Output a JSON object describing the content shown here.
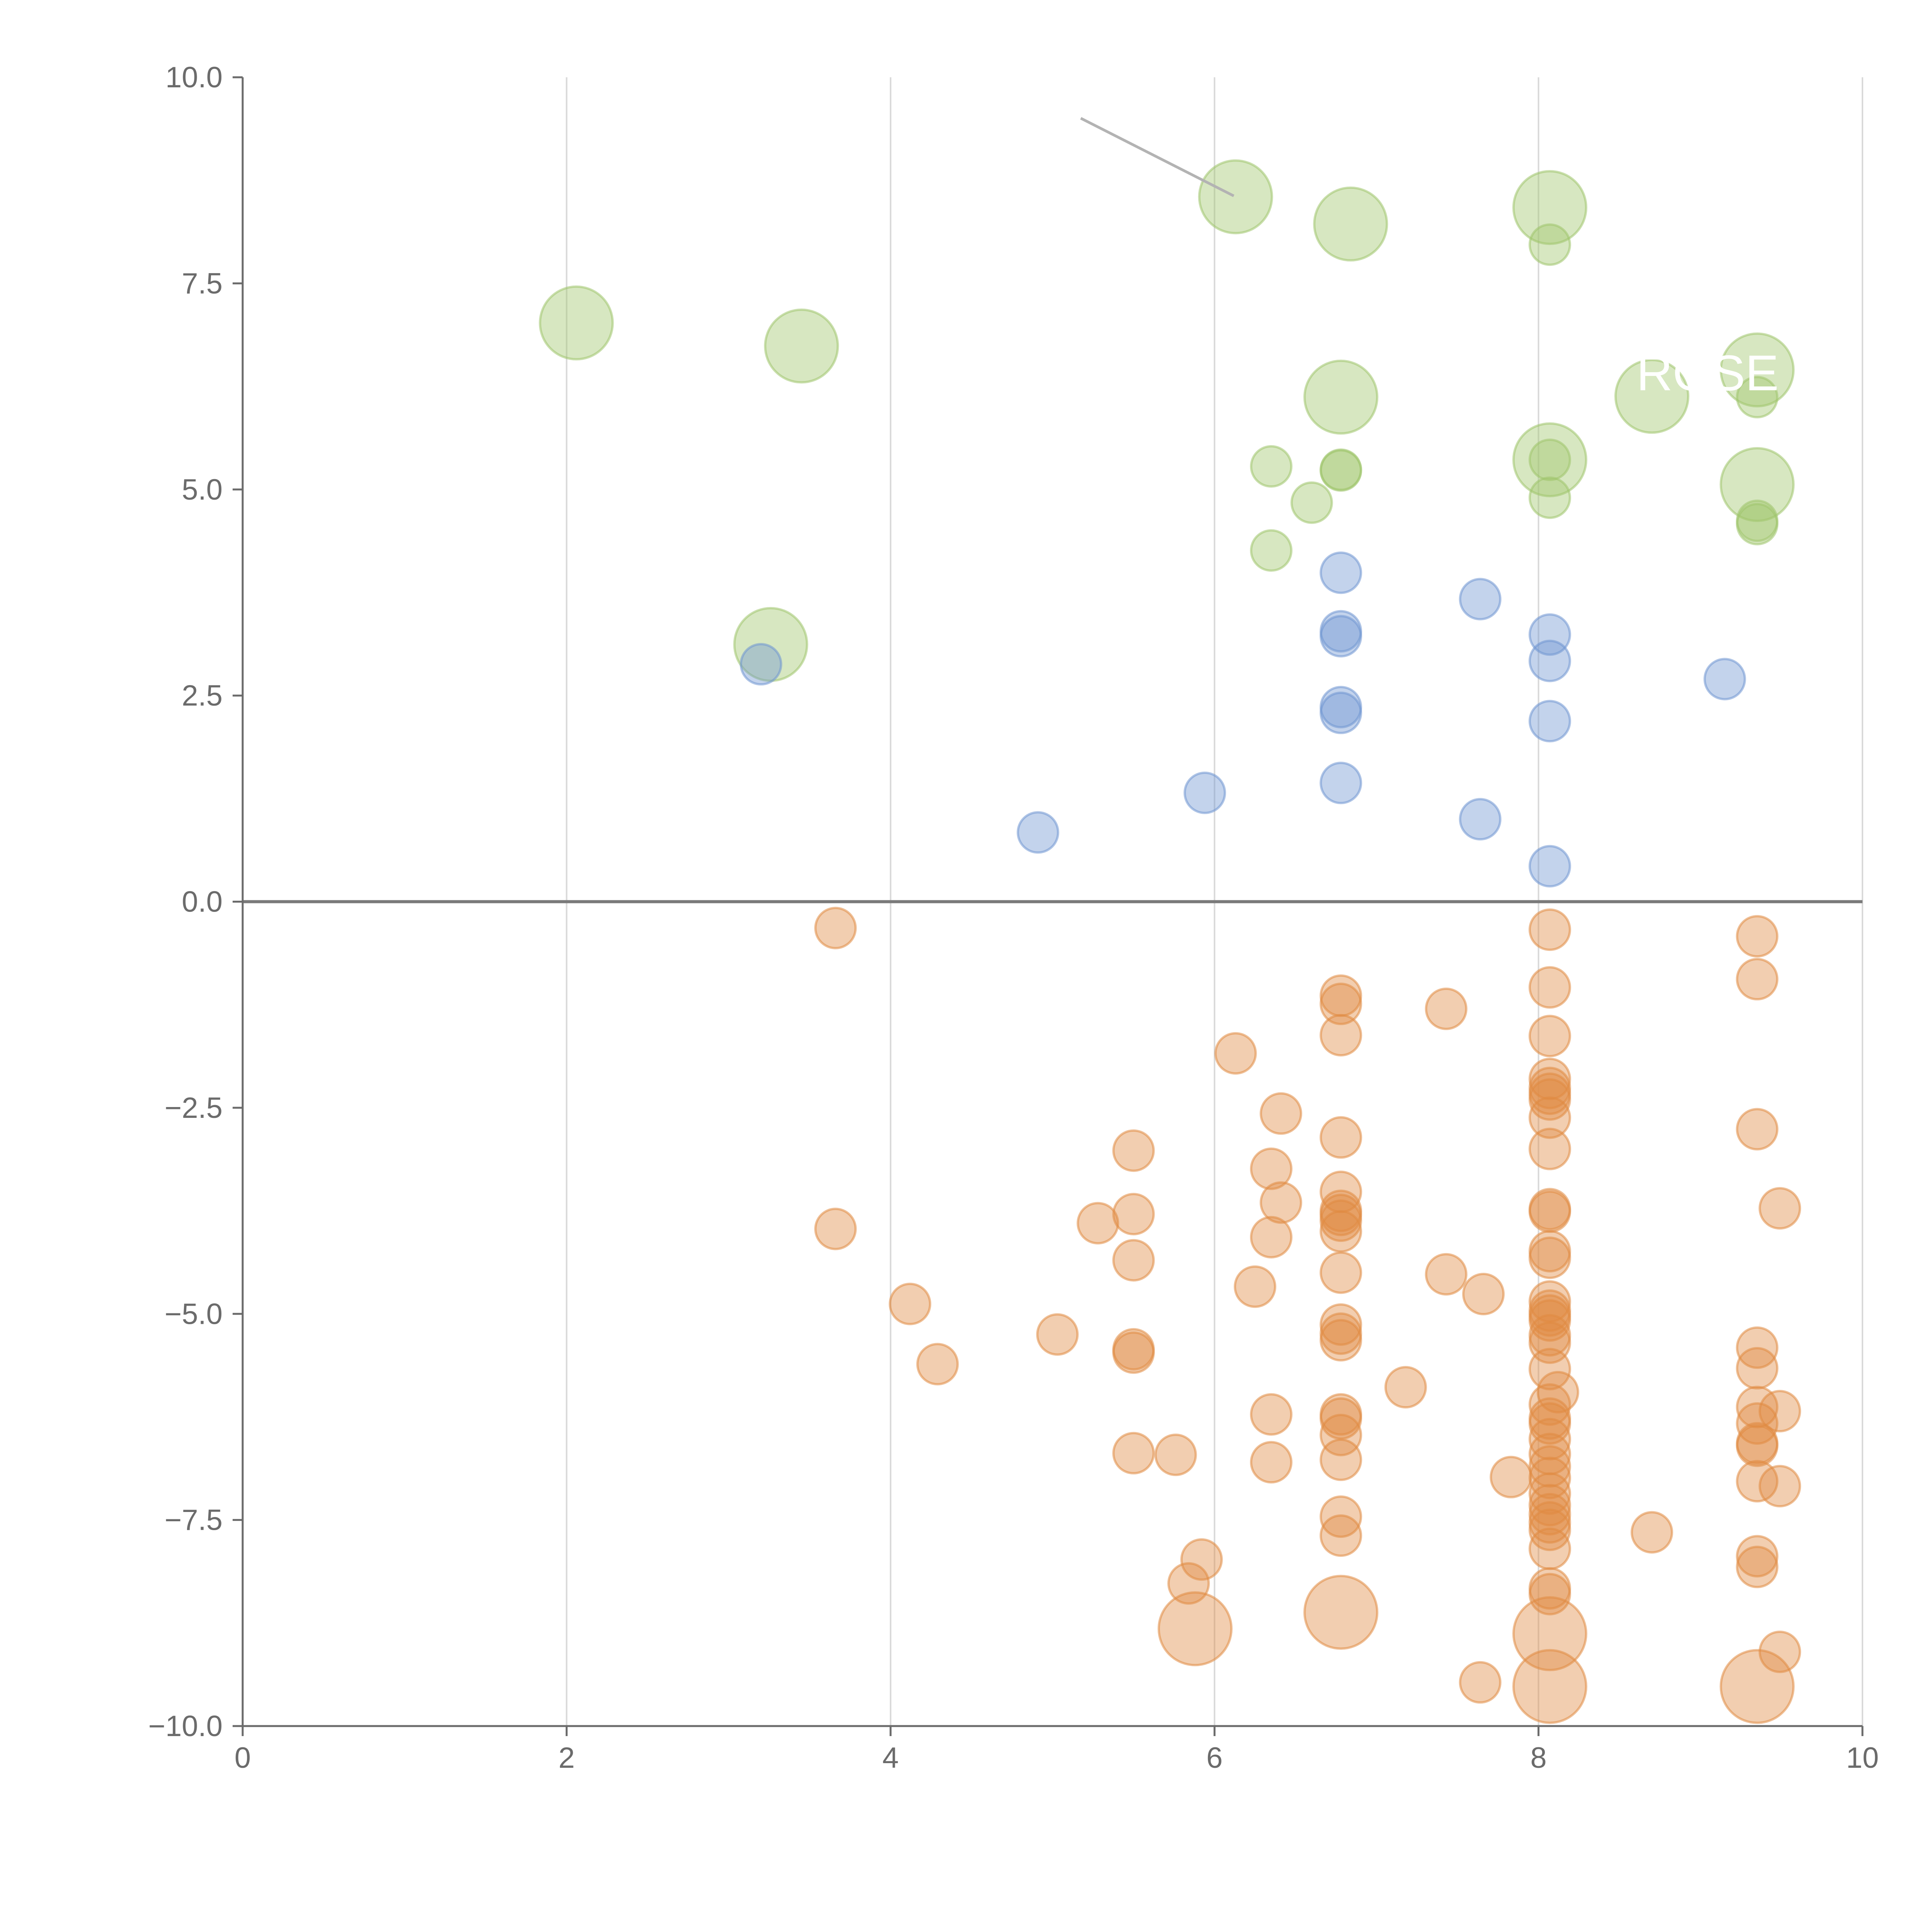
{
  "chart_data": {
    "type": "scatter",
    "title": "",
    "xlabel": "",
    "ylabel": "",
    "xlim": [
      0,
      10
    ],
    "ylim": [
      -10,
      10
    ],
    "x_ticks": [
      0,
      2,
      4,
      6,
      8,
      10
    ],
    "y_ticks": [
      -10,
      -7.5,
      -5,
      -2.5,
      0,
      2.5,
      5,
      7.5,
      10
    ],
    "x_tick_labels": [
      "0",
      "2",
      "4",
      "6",
      "8",
      "10"
    ],
    "y_tick_labels": [
      "−10.0",
      "−7.5",
      "−5.0",
      "−2.5",
      "0.0",
      "2.5",
      "5.0",
      "7.5",
      "10.0"
    ],
    "grid": "vertical",
    "zero_line": true,
    "colors": {
      "green": "#9fc56b",
      "blue": "#6f96d1",
      "orange": "#e08a42",
      "axis": "#6b6b6b",
      "grid": "#d9d9d9",
      "zero_line": "#7a7a7a"
    },
    "annotations": [
      {
        "text": "ROSE",
        "x": 8.62,
        "y": 6.4
      }
    ],
    "series": [
      {
        "name": "green",
        "color": "#9fc56b",
        "points": [
          {
            "x": 6.13,
            "y": 8.55,
            "s": "l"
          },
          {
            "x": 6.84,
            "y": 8.22,
            "s": "l"
          },
          {
            "x": 8.07,
            "y": 8.42,
            "s": "l"
          },
          {
            "x": 8.07,
            "y": 7.97,
            "s": "s"
          },
          {
            "x": 2.06,
            "y": 7.02,
            "s": "l"
          },
          {
            "x": 3.45,
            "y": 6.74,
            "s": "l"
          },
          {
            "x": 6.78,
            "y": 6.12,
            "s": "l"
          },
          {
            "x": 8.7,
            "y": 6.13,
            "s": "l"
          },
          {
            "x": 9.35,
            "y": 6.45,
            "s": "l"
          },
          {
            "x": 9.35,
            "y": 6.12,
            "s": "s"
          },
          {
            "x": 6.35,
            "y": 5.28,
            "s": "s"
          },
          {
            "x": 6.78,
            "y": 5.24,
            "s": "s"
          },
          {
            "x": 6.78,
            "y": 5.23,
            "s": "s"
          },
          {
            "x": 8.07,
            "y": 5.36,
            "s": "l"
          },
          {
            "x": 8.07,
            "y": 5.36,
            "s": "s"
          },
          {
            "x": 8.07,
            "y": 4.9,
            "s": "s"
          },
          {
            "x": 6.6,
            "y": 4.84,
            "s": "s"
          },
          {
            "x": 9.35,
            "y": 5.06,
            "s": "l"
          },
          {
            "x": 9.35,
            "y": 4.62,
            "s": "s"
          },
          {
            "x": 9.35,
            "y": 4.58,
            "s": "s"
          },
          {
            "x": 6.35,
            "y": 4.26,
            "s": "s"
          },
          {
            "x": 3.26,
            "y": 3.12,
            "s": "l"
          }
        ]
      },
      {
        "name": "blue",
        "color": "#6f96d1",
        "points": [
          {
            "x": 6.78,
            "y": 3.99
          },
          {
            "x": 7.64,
            "y": 3.67
          },
          {
            "x": 6.78,
            "y": 3.28
          },
          {
            "x": 6.78,
            "y": 3.22
          },
          {
            "x": 8.07,
            "y": 3.24
          },
          {
            "x": 8.07,
            "y": 2.92
          },
          {
            "x": 3.2,
            "y": 2.88
          },
          {
            "x": 9.15,
            "y": 2.7
          },
          {
            "x": 6.78,
            "y": 2.36
          },
          {
            "x": 6.78,
            "y": 2.29
          },
          {
            "x": 8.07,
            "y": 2.19
          },
          {
            "x": 6.78,
            "y": 1.44
          },
          {
            "x": 5.94,
            "y": 1.32
          },
          {
            "x": 7.64,
            "y": 1.0
          },
          {
            "x": 4.91,
            "y": 0.84
          },
          {
            "x": 8.07,
            "y": 0.43
          }
        ]
      },
      {
        "name": "orange",
        "color": "#e08a42",
        "points": [
          {
            "x": 3.66,
            "y": -0.32,
            "s": "s"
          },
          {
            "x": 8.07,
            "y": -0.34,
            "s": "s"
          },
          {
            "x": 9.35,
            "y": -0.42,
            "s": "s"
          },
          {
            "x": 9.35,
            "y": -0.94,
            "s": "s"
          },
          {
            "x": 8.07,
            "y": -1.04,
            "s": "s"
          },
          {
            "x": 6.78,
            "y": -1.14,
            "s": "s"
          },
          {
            "x": 6.78,
            "y": -1.24,
            "s": "s"
          },
          {
            "x": 7.43,
            "y": -1.3,
            "s": "s"
          },
          {
            "x": 6.78,
            "y": -1.62,
            "s": "s"
          },
          {
            "x": 8.07,
            "y": -1.63,
            "s": "s"
          },
          {
            "x": 6.13,
            "y": -1.84,
            "s": "s"
          },
          {
            "x": 8.07,
            "y": -2.15,
            "s": "s"
          },
          {
            "x": 8.07,
            "y": -2.26,
            "s": "s"
          },
          {
            "x": 8.07,
            "y": -2.33,
            "s": "s"
          },
          {
            "x": 8.07,
            "y": -2.4,
            "s": "s"
          },
          {
            "x": 6.41,
            "y": -2.57,
            "s": "s"
          },
          {
            "x": 8.07,
            "y": -2.62,
            "s": "s"
          },
          {
            "x": 9.35,
            "y": -2.76,
            "s": "s"
          },
          {
            "x": 6.78,
            "y": -2.86,
            "s": "s"
          },
          {
            "x": 5.5,
            "y": -3.02,
            "s": "s"
          },
          {
            "x": 8.07,
            "y": -3.0,
            "s": "s"
          },
          {
            "x": 6.35,
            "y": -3.24,
            "s": "s"
          },
          {
            "x": 6.78,
            "y": -3.52,
            "s": "s"
          },
          {
            "x": 6.41,
            "y": -3.65,
            "s": "s"
          },
          {
            "x": 6.78,
            "y": -3.75,
            "s": "s"
          },
          {
            "x": 6.78,
            "y": -3.8,
            "s": "s"
          },
          {
            "x": 6.78,
            "y": -3.87,
            "s": "s"
          },
          {
            "x": 8.07,
            "y": -3.73,
            "s": "s"
          },
          {
            "x": 8.07,
            "y": -3.76,
            "s": "s"
          },
          {
            "x": 5.5,
            "y": -3.79,
            "s": "s"
          },
          {
            "x": 9.49,
            "y": -3.72,
            "s": "s"
          },
          {
            "x": 5.28,
            "y": -3.9,
            "s": "s"
          },
          {
            "x": 3.66,
            "y": -3.97,
            "s": "s"
          },
          {
            "x": 6.78,
            "y": -4.0,
            "s": "s"
          },
          {
            "x": 6.35,
            "y": -4.07,
            "s": "s"
          },
          {
            "x": 8.07,
            "y": -4.24,
            "s": "s"
          },
          {
            "x": 8.07,
            "y": -4.32,
            "s": "s"
          },
          {
            "x": 5.5,
            "y": -4.35,
            "s": "s"
          },
          {
            "x": 6.78,
            "y": -4.5,
            "s": "s"
          },
          {
            "x": 7.43,
            "y": -4.52,
            "s": "s"
          },
          {
            "x": 6.25,
            "y": -4.67,
            "s": "s"
          },
          {
            "x": 7.66,
            "y": -4.76,
            "s": "s"
          },
          {
            "x": 8.07,
            "y": -4.85,
            "s": "s"
          },
          {
            "x": 4.12,
            "y": -4.88,
            "s": "s"
          },
          {
            "x": 8.07,
            "y": -4.96,
            "s": "s"
          },
          {
            "x": 8.07,
            "y": -5.02,
            "s": "s"
          },
          {
            "x": 8.07,
            "y": -5.08,
            "s": "s"
          },
          {
            "x": 6.78,
            "y": -5.13,
            "s": "s"
          },
          {
            "x": 5.03,
            "y": -5.25,
            "s": "s"
          },
          {
            "x": 6.78,
            "y": -5.24,
            "s": "s"
          },
          {
            "x": 8.07,
            "y": -5.26,
            "s": "s"
          },
          {
            "x": 6.78,
            "y": -5.32,
            "s": "s"
          },
          {
            "x": 8.07,
            "y": -5.35,
            "s": "s"
          },
          {
            "x": 9.35,
            "y": -5.41,
            "s": "s"
          },
          {
            "x": 5.5,
            "y": -5.43,
            "s": "s"
          },
          {
            "x": 5.5,
            "y": -5.47,
            "s": "s"
          },
          {
            "x": 4.29,
            "y": -5.61,
            "s": "s"
          },
          {
            "x": 9.35,
            "y": -5.66,
            "s": "s"
          },
          {
            "x": 8.07,
            "y": -5.67,
            "s": "s"
          },
          {
            "x": 7.18,
            "y": -5.89,
            "s": "s"
          },
          {
            "x": 8.12,
            "y": -5.95,
            "s": "s"
          },
          {
            "x": 8.07,
            "y": -6.1,
            "s": "s"
          },
          {
            "x": 9.35,
            "y": -6.13,
            "s": "s"
          },
          {
            "x": 9.49,
            "y": -6.18,
            "s": "s"
          },
          {
            "x": 6.35,
            "y": -6.22,
            "s": "s"
          },
          {
            "x": 6.78,
            "y": -6.22,
            "s": "s"
          },
          {
            "x": 6.78,
            "y": -6.27,
            "s": "s"
          },
          {
            "x": 8.07,
            "y": -6.27,
            "s": "s"
          },
          {
            "x": 8.07,
            "y": -6.33,
            "s": "s"
          },
          {
            "x": 9.35,
            "y": -6.33,
            "s": "s"
          },
          {
            "x": 6.78,
            "y": -6.47,
            "s": "s"
          },
          {
            "x": 8.07,
            "y": -6.52,
            "s": "s"
          },
          {
            "x": 9.35,
            "y": -6.57,
            "s": "s"
          },
          {
            "x": 9.35,
            "y": -6.6,
            "s": "s"
          },
          {
            "x": 5.5,
            "y": -6.69,
            "s": "s"
          },
          {
            "x": 5.76,
            "y": -6.71,
            "s": "s"
          },
          {
            "x": 8.07,
            "y": -6.7,
            "s": "s"
          },
          {
            "x": 6.78,
            "y": -6.77,
            "s": "s"
          },
          {
            "x": 6.35,
            "y": -6.8,
            "s": "s"
          },
          {
            "x": 8.07,
            "y": -6.85,
            "s": "s"
          },
          {
            "x": 7.83,
            "y": -6.98,
            "s": "s"
          },
          {
            "x": 8.07,
            "y": -6.99,
            "s": "s"
          },
          {
            "x": 9.35,
            "y": -7.03,
            "s": "s"
          },
          {
            "x": 9.49,
            "y": -7.09,
            "s": "s"
          },
          {
            "x": 8.07,
            "y": -7.18,
            "s": "s"
          },
          {
            "x": 8.07,
            "y": -7.32,
            "s": "s"
          },
          {
            "x": 8.07,
            "y": -7.43,
            "s": "s"
          },
          {
            "x": 6.78,
            "y": -7.46,
            "s": "s"
          },
          {
            "x": 8.07,
            "y": -7.53,
            "s": "s"
          },
          {
            "x": 8.07,
            "y": -7.62,
            "s": "s"
          },
          {
            "x": 8.7,
            "y": -7.65,
            "s": "s"
          },
          {
            "x": 6.78,
            "y": -7.69,
            "s": "s"
          },
          {
            "x": 8.07,
            "y": -7.85,
            "s": "s"
          },
          {
            "x": 5.92,
            "y": -7.98,
            "s": "s"
          },
          {
            "x": 9.35,
            "y": -7.94,
            "s": "s"
          },
          {
            "x": 9.35,
            "y": -8.07,
            "s": "s"
          },
          {
            "x": 5.84,
            "y": -8.27,
            "s": "s"
          },
          {
            "x": 8.07,
            "y": -8.33,
            "s": "s"
          },
          {
            "x": 8.07,
            "y": -8.4,
            "s": "s"
          },
          {
            "x": 6.78,
            "y": -8.62,
            "s": "l"
          },
          {
            "x": 5.88,
            "y": -8.82,
            "s": "l"
          },
          {
            "x": 8.07,
            "y": -8.88,
            "s": "l"
          },
          {
            "x": 9.49,
            "y": -9.1,
            "s": "s"
          },
          {
            "x": 7.64,
            "y": -9.47,
            "s": "s"
          },
          {
            "x": 8.07,
            "y": -9.52,
            "s": "l"
          },
          {
            "x": 9.35,
            "y": -9.52,
            "s": "l"
          }
        ]
      }
    ]
  }
}
